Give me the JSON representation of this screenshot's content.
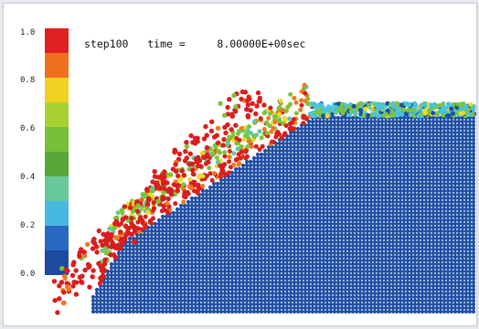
{
  "title": "step100   time =     8.00000E+00sec",
  "colorbar": {
    "ticks": [
      "1.0",
      "0.8",
      "0.6",
      "0.4",
      "0.2",
      "0.0"
    ],
    "colors": [
      "#e02020",
      "#f07020",
      "#f0d020",
      "#a8d030",
      "#78c038",
      "#58a838",
      "#68c898",
      "#48b8e0",
      "#2868c0",
      "#1e4aa0"
    ]
  },
  "palette": {
    "bulk": "#1f4ea3",
    "red": "#d91e1e",
    "orange": "#ee7a22",
    "yellow": "#ecdc2a",
    "green": "#7cc43a",
    "cyan": "#49c3de",
    "teal": "#63c7a0"
  }
}
